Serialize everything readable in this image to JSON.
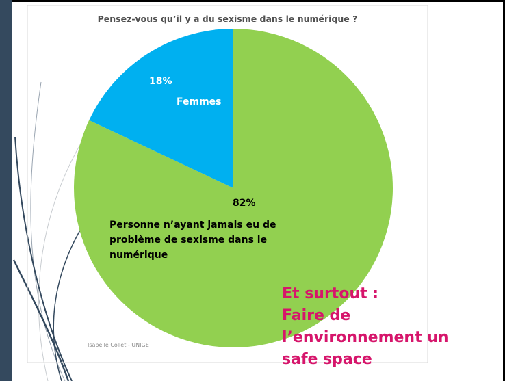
{
  "chart_data": {
    "type": "pie",
    "title": "Pensez-vous qu’il y a du sexisme dans le numérique ?",
    "categories": [
      "Personne n’ayant jamais eu de problème de sexisme dans le numérique",
      "Femmes"
    ],
    "values": [
      82,
      18
    ],
    "value_labels": [
      "82%",
      "18%"
    ],
    "colors": [
      "#92d050",
      "#00b0f0"
    ]
  },
  "annotation": [
    "Et surtout :",
    "Faire de",
    "l’environnement un",
    "safe space"
  ],
  "footer": "Isabelle Collet - UNIGE"
}
